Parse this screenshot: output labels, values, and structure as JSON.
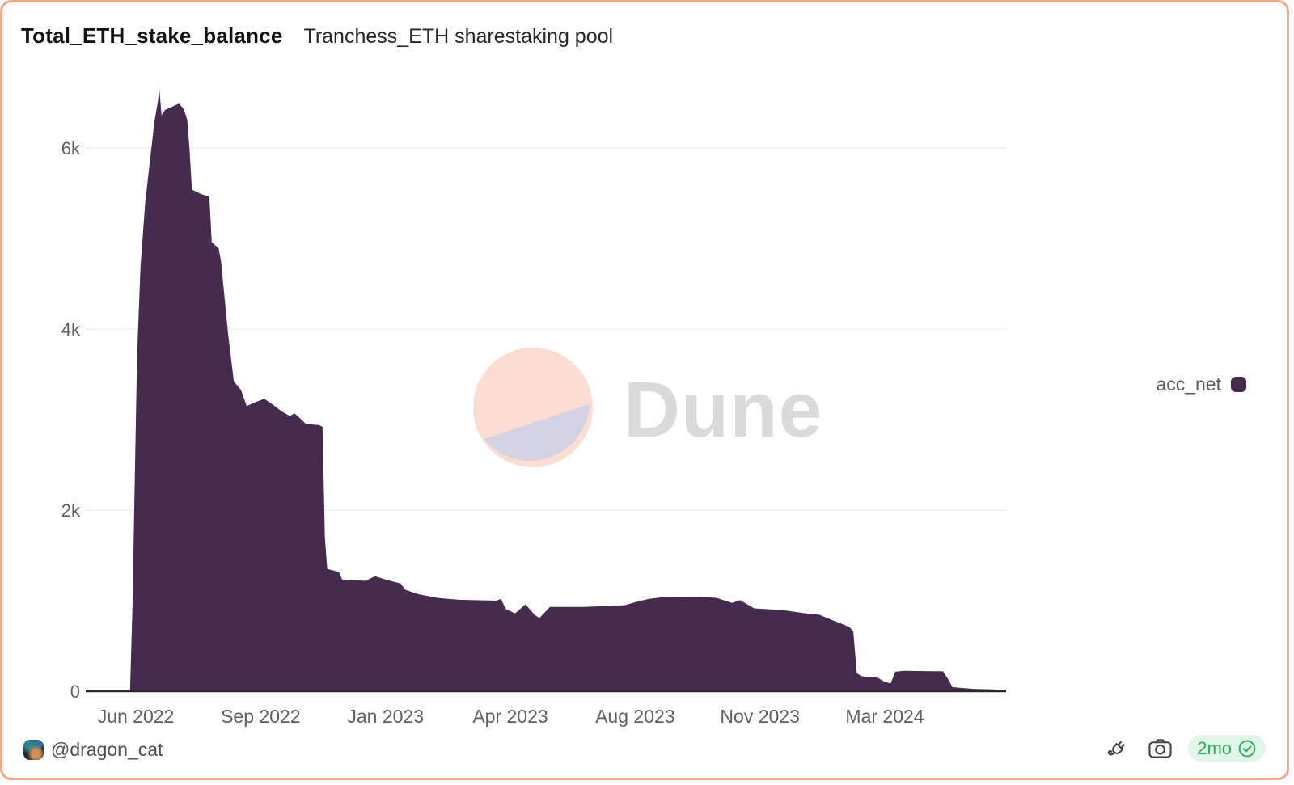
{
  "header": {
    "title": "Total_ETH_stake_balance",
    "subtitle": "Tranchess_ETH sharestaking pool"
  },
  "watermark": {
    "brand": "Dune",
    "circle_top_color": "#fbddd3",
    "circle_bottom_color": "#d2d2e4",
    "text_color": "#dadada"
  },
  "legend": {
    "label": "acc_net",
    "swatch_color": "#452c4f"
  },
  "footer": {
    "author_handle": "@dragon_cat",
    "age_badge": {
      "text": "2mo",
      "text_color": "#29b15a",
      "bg_color": "#e1f6e9"
    },
    "icons": [
      "plug-icon",
      "camera-icon",
      "verified-seal-icon"
    ]
  },
  "frame": {
    "border_color": "#f5a78e",
    "background": "#ffffff"
  },
  "chart_data": {
    "type": "area",
    "title": "Total_ETH_stake_balance",
    "subtitle": "Tranchess_ETH sharestaking pool",
    "xlabel": "",
    "ylabel": "",
    "grid": "horizontal",
    "legend_position": "right",
    "x_domain": [
      "2022-04-19",
      "2024-06-16"
    ],
    "y_domain": [
      0,
      6770
    ],
    "y_ticks": [
      {
        "value": 0,
        "label": "0"
      },
      {
        "value": 2000,
        "label": "2k"
      },
      {
        "value": 4000,
        "label": "4k"
      },
      {
        "value": 6000,
        "label": "6k"
      }
    ],
    "x_ticks": [
      {
        "date": "2022-06-01",
        "label": "Jun 2022"
      },
      {
        "date": "2022-09-16",
        "label": "Sep 2022"
      },
      {
        "date": "2023-01-01",
        "label": "Jan 2023"
      },
      {
        "date": "2023-04-18",
        "label": "Apr 2023"
      },
      {
        "date": "2023-08-03",
        "label": "Aug 2023"
      },
      {
        "date": "2023-11-18",
        "label": "Nov 2023"
      },
      {
        "date": "2024-03-04",
        "label": "Mar 2024"
      }
    ],
    "series": [
      {
        "name": "acc_net",
        "color": "#452c4f",
        "points": [
          [
            "2022-05-27",
            0
          ],
          [
            "2022-05-29",
            900
          ],
          [
            "2022-05-31",
            2300
          ],
          [
            "2022-06-02",
            3700
          ],
          [
            "2022-06-05",
            4700
          ],
          [
            "2022-06-09",
            5400
          ],
          [
            "2022-06-13",
            5850
          ],
          [
            "2022-06-17",
            6300
          ],
          [
            "2022-06-20",
            6520
          ],
          [
            "2022-06-21",
            6670
          ],
          [
            "2022-06-23",
            6360
          ],
          [
            "2022-06-26",
            6420
          ],
          [
            "2022-07-01",
            6450
          ],
          [
            "2022-07-08",
            6490
          ],
          [
            "2022-07-12",
            6430
          ],
          [
            "2022-07-15",
            6310
          ],
          [
            "2022-07-17",
            5980
          ],
          [
            "2022-07-19",
            5540
          ],
          [
            "2022-07-27",
            5490
          ],
          [
            "2022-08-03",
            5460
          ],
          [
            "2022-08-05",
            4960
          ],
          [
            "2022-08-11",
            4890
          ],
          [
            "2022-08-13",
            4750
          ],
          [
            "2022-08-19",
            3950
          ],
          [
            "2022-08-24",
            3420
          ],
          [
            "2022-08-30",
            3330
          ],
          [
            "2022-09-04",
            3150
          ],
          [
            "2022-09-11",
            3190
          ],
          [
            "2022-09-19",
            3230
          ],
          [
            "2022-09-26",
            3170
          ],
          [
            "2022-10-04",
            3090
          ],
          [
            "2022-10-11",
            3040
          ],
          [
            "2022-10-15",
            3070
          ],
          [
            "2022-10-20",
            3010
          ],
          [
            "2022-10-25",
            2950
          ],
          [
            "2022-11-05",
            2940
          ],
          [
            "2022-11-08",
            2920
          ],
          [
            "2022-11-10",
            1700
          ],
          [
            "2022-11-12",
            1350
          ],
          [
            "2022-11-22",
            1320
          ],
          [
            "2022-11-25",
            1230
          ],
          [
            "2022-12-15",
            1220
          ],
          [
            "2022-12-23",
            1270
          ],
          [
            "2023-01-02",
            1230
          ],
          [
            "2023-01-14",
            1190
          ],
          [
            "2023-01-18",
            1120
          ],
          [
            "2023-01-30",
            1070
          ],
          [
            "2023-02-15",
            1030
          ],
          [
            "2023-03-05",
            1010
          ],
          [
            "2023-04-06",
            1000
          ],
          [
            "2023-04-10",
            1020
          ],
          [
            "2023-04-14",
            910
          ],
          [
            "2023-04-22",
            860
          ],
          [
            "2023-05-01",
            960
          ],
          [
            "2023-05-09",
            840
          ],
          [
            "2023-05-13",
            810
          ],
          [
            "2023-05-22",
            930
          ],
          [
            "2023-06-20",
            930
          ],
          [
            "2023-07-25",
            950
          ],
          [
            "2023-08-05",
            990
          ],
          [
            "2023-08-15",
            1020
          ],
          [
            "2023-08-28",
            1040
          ],
          [
            "2023-09-25",
            1045
          ],
          [
            "2023-10-12",
            1030
          ],
          [
            "2023-10-25",
            975
          ],
          [
            "2023-11-01",
            1005
          ],
          [
            "2023-11-13",
            915
          ],
          [
            "2023-12-08",
            895
          ],
          [
            "2023-12-30",
            855
          ],
          [
            "2024-01-08",
            845
          ],
          [
            "2024-01-18",
            790
          ],
          [
            "2024-01-29",
            735
          ],
          [
            "2024-02-03",
            705
          ],
          [
            "2024-02-06",
            660
          ],
          [
            "2024-02-09",
            200
          ],
          [
            "2024-02-13",
            165
          ],
          [
            "2024-02-27",
            150
          ],
          [
            "2024-03-03",
            110
          ],
          [
            "2024-03-09",
            85
          ],
          [
            "2024-03-13",
            215
          ],
          [
            "2024-03-20",
            225
          ],
          [
            "2024-04-23",
            220
          ],
          [
            "2024-04-28",
            120
          ],
          [
            "2024-05-01",
            45
          ],
          [
            "2024-05-20",
            25
          ],
          [
            "2024-06-05",
            20
          ],
          [
            "2024-06-12",
            8
          ],
          [
            "2024-06-16",
            15
          ]
        ]
      }
    ]
  }
}
